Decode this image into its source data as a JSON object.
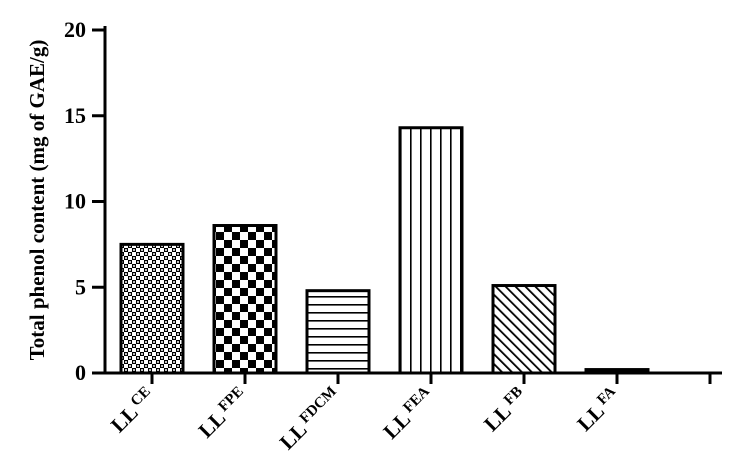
{
  "chart_data": {
    "type": "bar",
    "ylabel": "Total phenol content (mg of GAE/g)",
    "ylim": [
      0,
      20
    ],
    "yticks": [
      "0",
      "5",
      "10",
      "15",
      "20"
    ],
    "categories": [
      {
        "base": "LL",
        "sup": "CE"
      },
      {
        "base": "LL",
        "sup": "FPE"
      },
      {
        "base": "LL",
        "sup": "FDCM"
      },
      {
        "base": "LL",
        "sup": "FEA"
      },
      {
        "base": "LL",
        "sup": "FB"
      },
      {
        "base": "LL",
        "sup": "FA"
      }
    ],
    "values": [
      7.5,
      8.6,
      4.8,
      14.3,
      5.1,
      0.2
    ],
    "patterns": [
      "fine-checker",
      "checkerboard",
      "horizontal-lines",
      "vertical-lines",
      "diagonal-lines",
      "solid"
    ],
    "grid": false,
    "colors": {
      "bar_stroke": "#000000",
      "fill": "#000000",
      "background": "#ffffff"
    }
  }
}
